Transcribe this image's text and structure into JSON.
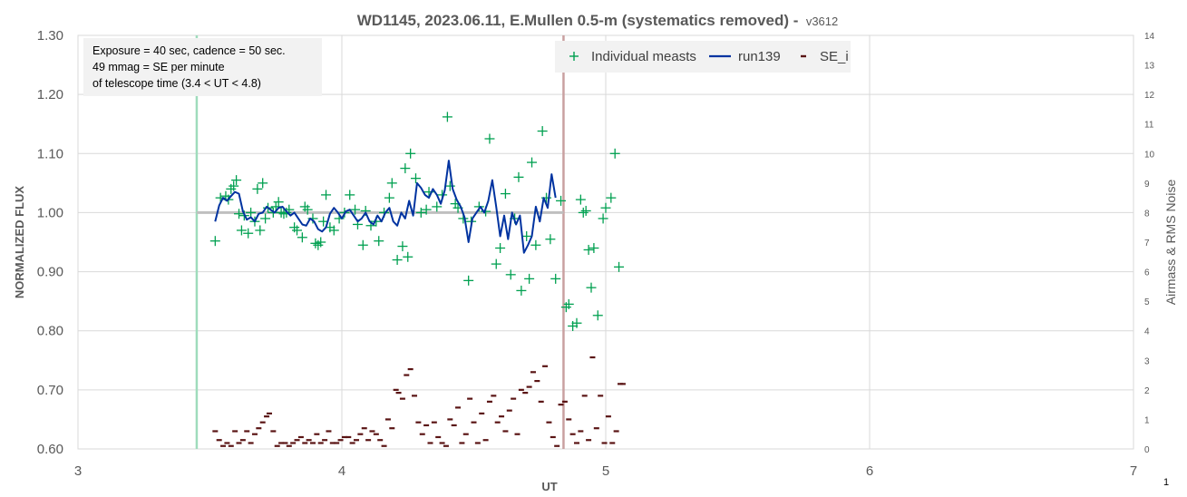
{
  "chart_data": {
    "type": "scatter",
    "title": "WD1145, 2023.06.11, E.Mullen 0.5-m (systematics removed) -",
    "version_label": "v3612",
    "xlabel": "UT",
    "ylabel": "NORMALIZED FLUX",
    "y2label": "Airmass & RMS Noise",
    "corner_label": "1",
    "xlim": [
      3,
      7
    ],
    "ylim": [
      0.6,
      1.3
    ],
    "y2lim": [
      0,
      14
    ],
    "x_ticks": [
      "3",
      "4",
      "5",
      "6",
      "7"
    ],
    "y_ticks": [
      "0.60",
      "0.70",
      "0.80",
      "0.90",
      "1.00",
      "1.10",
      "1.20",
      "1.30"
    ],
    "y2_ticks": [
      "0",
      "1",
      "2",
      "3",
      "4",
      "5",
      "6",
      "7",
      "8",
      "9",
      "10",
      "11",
      "12",
      "13",
      "14"
    ],
    "grid": true,
    "legend_position": "top-center",
    "annotation_lines": [
      "Exposure = 40 sec, cadence = 50 sec.",
      "49 mmag = SE per minute",
      "of telescope time (3.4 < UT < 4.8)"
    ],
    "vertical_markers": [
      {
        "x": 3.45,
        "color": "#9fdcbc"
      },
      {
        "x": 4.84,
        "color": "#c9a0a0"
      }
    ],
    "reference_line": {
      "y": 1.0,
      "x_start": 3.45,
      "x_end": 4.84,
      "color": "#bfbfbf"
    },
    "legend": [
      {
        "label": "Individual measts",
        "symbol": "plus",
        "color": "#00a050"
      },
      {
        "label": "run139",
        "symbol": "line",
        "color": "#0033a0"
      },
      {
        "label": "SE_i",
        "symbol": "dash",
        "color": "#5a1414"
      }
    ],
    "series": [
      {
        "name": "Individual measts",
        "marker": "plus",
        "color": "#00a050",
        "axis": "left",
        "points": [
          [
            3.52,
            0.952
          ],
          [
            3.54,
            1.025
          ],
          [
            3.56,
            1.028
          ],
          [
            3.57,
            1.022
          ],
          [
            3.58,
            1.04
          ],
          [
            3.59,
            1.045
          ],
          [
            3.6,
            1.055
          ],
          [
            3.61,
            0.998
          ],
          [
            3.62,
            0.97
          ],
          [
            3.63,
            0.995
          ],
          [
            3.645,
            0.965
          ],
          [
            3.655,
            1.0
          ],
          [
            3.67,
            0.985
          ],
          [
            3.68,
            1.04
          ],
          [
            3.69,
            0.97
          ],
          [
            3.7,
            1.05
          ],
          [
            3.71,
            0.99
          ],
          [
            3.72,
            1.008
          ],
          [
            3.74,
            1.0
          ],
          [
            3.75,
            1.01
          ],
          [
            3.76,
            1.018
          ],
          [
            3.77,
            1.0
          ],
          [
            3.78,
            0.998
          ],
          [
            3.79,
            1.0
          ],
          [
            3.8,
            1.005
          ],
          [
            3.82,
            0.975
          ],
          [
            3.83,
            0.97
          ],
          [
            3.85,
            0.958
          ],
          [
            3.86,
            1.01
          ],
          [
            3.87,
            1.005
          ],
          [
            3.89,
            0.99
          ],
          [
            3.9,
            0.948
          ],
          [
            3.91,
            0.945
          ],
          [
            3.92,
            0.95
          ],
          [
            3.93,
            0.985
          ],
          [
            3.94,
            1.03
          ],
          [
            3.955,
            0.975
          ],
          [
            3.97,
            0.97
          ],
          [
            3.99,
            0.99
          ],
          [
            4.01,
            1.0
          ],
          [
            4.03,
            1.03
          ],
          [
            4.05,
            1.005
          ],
          [
            4.06,
            0.98
          ],
          [
            4.08,
            0.945
          ],
          [
            4.09,
            1.003
          ],
          [
            4.11,
            0.978
          ],
          [
            4.13,
            0.985
          ],
          [
            4.14,
            0.952
          ],
          [
            4.16,
            1.0
          ],
          [
            4.18,
            1.025
          ],
          [
            4.19,
            1.05
          ],
          [
            4.21,
            0.92
          ],
          [
            4.23,
            0.943
          ],
          [
            4.24,
            1.075
          ],
          [
            4.25,
            0.925
          ],
          [
            4.26,
            1.1
          ],
          [
            4.28,
            1.058
          ],
          [
            4.3,
            1.0
          ],
          [
            4.32,
            1.005
          ],
          [
            4.33,
            1.035
          ],
          [
            4.36,
            1.01
          ],
          [
            4.38,
            1.03
          ],
          [
            4.4,
            1.162
          ],
          [
            4.41,
            1.045
          ],
          [
            4.43,
            1.015
          ],
          [
            4.44,
            1.008
          ],
          [
            4.46,
            0.99
          ],
          [
            4.48,
            0.885
          ],
          [
            4.49,
            0.985
          ],
          [
            4.52,
            1.01
          ],
          [
            4.545,
            1.002
          ],
          [
            4.56,
            1.125
          ],
          [
            4.585,
            0.913
          ],
          [
            4.6,
            0.94
          ],
          [
            4.62,
            1.032
          ],
          [
            4.64,
            0.895
          ],
          [
            4.655,
            0.99
          ],
          [
            4.67,
            1.06
          ],
          [
            4.68,
            0.868
          ],
          [
            4.7,
            0.96
          ],
          [
            4.71,
            0.888
          ],
          [
            4.72,
            1.085
          ],
          [
            4.735,
            0.945
          ],
          [
            4.76,
            1.138
          ],
          [
            4.775,
            1.025
          ],
          [
            4.79,
            0.955
          ],
          [
            4.81,
            0.888
          ],
          [
            4.83,
            1.02
          ],
          [
            4.85,
            0.84
          ],
          [
            4.86,
            0.845
          ],
          [
            4.875,
            0.808
          ],
          [
            4.89,
            0.813
          ],
          [
            4.905,
            1.022
          ],
          [
            4.915,
            1.0
          ],
          [
            4.925,
            1.003
          ],
          [
            4.935,
            0.937
          ],
          [
            4.945,
            0.873
          ],
          [
            4.955,
            0.94
          ],
          [
            4.97,
            0.826
          ],
          [
            4.99,
            0.99
          ],
          [
            5.0,
            1.008
          ],
          [
            5.02,
            1.025
          ],
          [
            5.035,
            1.1
          ],
          [
            5.05,
            0.908
          ]
        ]
      },
      {
        "name": "run139",
        "marker": "line",
        "color": "#0033a0",
        "axis": "left",
        "points": [
          [
            3.52,
            0.985
          ],
          [
            3.535,
            1.012
          ],
          [
            3.55,
            1.025
          ],
          [
            3.565,
            1.02
          ],
          [
            3.58,
            1.028
          ],
          [
            3.595,
            1.035
          ],
          [
            3.61,
            1.032
          ],
          [
            3.625,
            1.002
          ],
          [
            3.64,
            0.988
          ],
          [
            3.655,
            0.992
          ],
          [
            3.67,
            0.985
          ],
          [
            3.685,
            0.998
          ],
          [
            3.7,
            1.0
          ],
          [
            3.715,
            1.01
          ],
          [
            3.73,
            1.005
          ],
          [
            3.745,
            1.0
          ],
          [
            3.76,
            1.008
          ],
          [
            3.775,
            1.01
          ],
          [
            3.79,
            1.002
          ],
          [
            3.805,
            0.995
          ],
          [
            3.82,
            1.0
          ],
          [
            3.835,
            0.99
          ],
          [
            3.85,
            0.98
          ],
          [
            3.865,
            0.978
          ],
          [
            3.88,
            0.99
          ],
          [
            3.895,
            0.985
          ],
          [
            3.91,
            0.972
          ],
          [
            3.925,
            0.968
          ],
          [
            3.94,
            0.975
          ],
          [
            3.955,
            0.998
          ],
          [
            3.97,
            1.008
          ],
          [
            3.985,
            1.0
          ],
          [
            4.0,
            0.99
          ],
          [
            4.015,
            1.002
          ],
          [
            4.03,
            1.005
          ],
          [
            4.045,
            0.995
          ],
          [
            4.06,
            0.985
          ],
          [
            4.075,
            0.99
          ],
          [
            4.09,
            1.0
          ],
          [
            4.105,
            0.985
          ],
          [
            4.12,
            0.98
          ],
          [
            4.135,
            0.995
          ],
          [
            4.15,
            0.985
          ],
          [
            4.165,
            1.0
          ],
          [
            4.18,
            1.008
          ],
          [
            4.195,
            0.985
          ],
          [
            4.21,
            0.978
          ],
          [
            4.225,
            1.0
          ],
          [
            4.24,
            0.99
          ],
          [
            4.255,
            1.02
          ],
          [
            4.27,
            0.995
          ],
          [
            4.285,
            1.05
          ],
          [
            4.3,
            1.042
          ],
          [
            4.315,
            1.03
          ],
          [
            4.33,
            1.025
          ],
          [
            4.345,
            1.04
          ],
          [
            4.36,
            1.03
          ],
          [
            4.375,
            1.015
          ],
          [
            4.39,
            1.038
          ],
          [
            4.405,
            1.088
          ],
          [
            4.42,
            1.04
          ],
          [
            4.435,
            1.022
          ],
          [
            4.45,
            1.01
          ],
          [
            4.465,
            0.992
          ],
          [
            4.48,
            0.95
          ],
          [
            4.495,
            0.99
          ],
          [
            4.51,
            1.0
          ],
          [
            4.525,
            1.01
          ],
          [
            4.54,
            1.0
          ],
          [
            4.555,
            1.02
          ],
          [
            4.57,
            1.055
          ],
          [
            4.585,
            1.01
          ],
          [
            4.6,
            0.96
          ],
          [
            4.615,
            0.995
          ],
          [
            4.63,
            0.955
          ],
          [
            4.645,
            1.0
          ],
          [
            4.66,
            0.98
          ],
          [
            4.675,
            0.995
          ],
          [
            4.69,
            0.932
          ],
          [
            4.705,
            0.945
          ],
          [
            4.72,
            0.96
          ],
          [
            4.735,
            1.01
          ],
          [
            4.75,
            0.985
          ],
          [
            4.765,
            1.025
          ],
          [
            4.78,
            1.008
          ],
          [
            4.795,
            1.065
          ],
          [
            4.81,
            1.025
          ]
        ]
      },
      {
        "name": "SE_i",
        "marker": "dash",
        "color": "#5a1414",
        "axis": "right",
        "points": [
          [
            3.52,
            0.6
          ],
          [
            3.535,
            0.3
          ],
          [
            3.55,
            0.1
          ],
          [
            3.565,
            0.2
          ],
          [
            3.58,
            0.1
          ],
          [
            3.595,
            0.6
          ],
          [
            3.61,
            0.2
          ],
          [
            3.625,
            0.3
          ],
          [
            3.64,
            0.6
          ],
          [
            3.655,
            0.2
          ],
          [
            3.67,
            0.5
          ],
          [
            3.685,
            0.7
          ],
          [
            3.7,
            0.9
          ],
          [
            3.715,
            1.1
          ],
          [
            3.725,
            1.2
          ],
          [
            3.74,
            0.6
          ],
          [
            3.755,
            0.1
          ],
          [
            3.77,
            0.2
          ],
          [
            3.785,
            0.2
          ],
          [
            3.8,
            0.1
          ],
          [
            3.815,
            0.2
          ],
          [
            3.83,
            0.3
          ],
          [
            3.845,
            0.4
          ],
          [
            3.86,
            0.2
          ],
          [
            3.875,
            0.3
          ],
          [
            3.89,
            0.2
          ],
          [
            3.905,
            0.5
          ],
          [
            3.92,
            0.2
          ],
          [
            3.935,
            0.3
          ],
          [
            3.95,
            0.6
          ],
          [
            3.965,
            0.2
          ],
          [
            3.98,
            0.2
          ],
          [
            3.995,
            0.3
          ],
          [
            4.01,
            0.4
          ],
          [
            4.025,
            0.4
          ],
          [
            4.04,
            0.2
          ],
          [
            4.055,
            0.3
          ],
          [
            4.07,
            0.5
          ],
          [
            4.085,
            0.7
          ],
          [
            4.1,
            0.3
          ],
          [
            4.115,
            0.6
          ],
          [
            4.13,
            0.5
          ],
          [
            4.145,
            0.3
          ],
          [
            4.16,
            0.1
          ],
          [
            4.175,
            1.0
          ],
          [
            4.19,
            0.7
          ],
          [
            4.205,
            2.0
          ],
          [
            4.215,
            1.9
          ],
          [
            4.23,
            1.7
          ],
          [
            4.245,
            2.5
          ],
          [
            4.26,
            2.7
          ],
          [
            4.275,
            1.8
          ],
          [
            4.29,
            0.9
          ],
          [
            4.305,
            0.5
          ],
          [
            4.32,
            0.8
          ],
          [
            4.335,
            0.2
          ],
          [
            4.35,
            0.9
          ],
          [
            4.365,
            0.4
          ],
          [
            4.38,
            0.2
          ],
          [
            4.395,
            0.1
          ],
          [
            4.41,
            1.0
          ],
          [
            4.425,
            0.8
          ],
          [
            4.44,
            1.4
          ],
          [
            4.455,
            0.2
          ],
          [
            4.47,
            0.5
          ],
          [
            4.485,
            1.7
          ],
          [
            4.5,
            0.9
          ],
          [
            4.515,
            0.2
          ],
          [
            4.53,
            1.2
          ],
          [
            4.545,
            0.3
          ],
          [
            4.56,
            1.6
          ],
          [
            4.575,
            1.8
          ],
          [
            4.59,
            0.9
          ],
          [
            4.605,
            1.1
          ],
          [
            4.62,
            0.6
          ],
          [
            4.635,
            1.3
          ],
          [
            4.65,
            1.7
          ],
          [
            4.665,
            0.5
          ],
          [
            4.68,
            2.0
          ],
          [
            4.695,
            1.9
          ],
          [
            4.71,
            2.1
          ],
          [
            4.725,
            2.6
          ],
          [
            4.74,
            2.3
          ],
          [
            4.755,
            1.6
          ],
          [
            4.77,
            2.8
          ],
          [
            4.785,
            0.9
          ],
          [
            4.8,
            0.4
          ],
          [
            4.815,
            0.1
          ],
          [
            4.83,
            1.5
          ],
          [
            4.845,
            1.6
          ],
          [
            4.86,
            1.0
          ],
          [
            4.875,
            0.5
          ],
          [
            4.89,
            0.2
          ],
          [
            4.905,
            0.6
          ],
          [
            4.92,
            1.8
          ],
          [
            4.935,
            0.3
          ],
          [
            4.95,
            3.1
          ],
          [
            4.965,
            0.7
          ],
          [
            4.98,
            1.8
          ],
          [
            4.995,
            0.2
          ],
          [
            5.01,
            1.1
          ],
          [
            5.025,
            0.2
          ],
          [
            5.04,
            0.6
          ],
          [
            5.055,
            2.2
          ],
          [
            5.065,
            2.2
          ]
        ]
      }
    ]
  }
}
